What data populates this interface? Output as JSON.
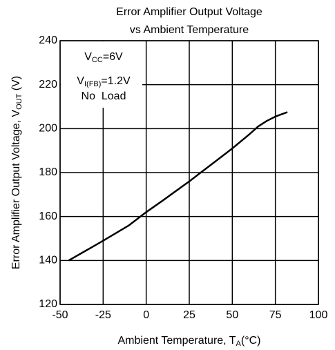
{
  "chart_data": {
    "type": "line",
    "title": [
      "Error Amplifier Output Voltage",
      "vs Ambient Temperature"
    ],
    "xlabel": [
      "Ambient Temperature, T",
      "A",
      "(°C)"
    ],
    "ylabel": [
      "Error Amplifier Output Voltage, V",
      "OUT",
      " (V)"
    ],
    "annotations": [
      [
        "V",
        "CC",
        "=6V"
      ],
      [
        "V",
        "I(FB)",
        "=1.2V"
      ],
      [
        "No  Load"
      ]
    ],
    "x": [
      -45,
      -35,
      -25,
      -10,
      0,
      10,
      25,
      40,
      50,
      60,
      65,
      70,
      75,
      82
    ],
    "series": [
      {
        "name": "VOUT",
        "color": "#000000",
        "values": [
          140,
          144.5,
          149,
          156,
          162,
          167.5,
          176,
          185,
          191,
          197.5,
          201,
          203.5,
          205.5,
          207.5
        ]
      }
    ],
    "xlim": [
      -50,
      100
    ],
    "xticks": [
      -50,
      -25,
      0,
      25,
      50,
      75,
      100
    ],
    "ylim": [
      120,
      240
    ],
    "yticks": [
      120,
      140,
      160,
      180,
      200,
      220,
      240
    ],
    "grid": true
  }
}
